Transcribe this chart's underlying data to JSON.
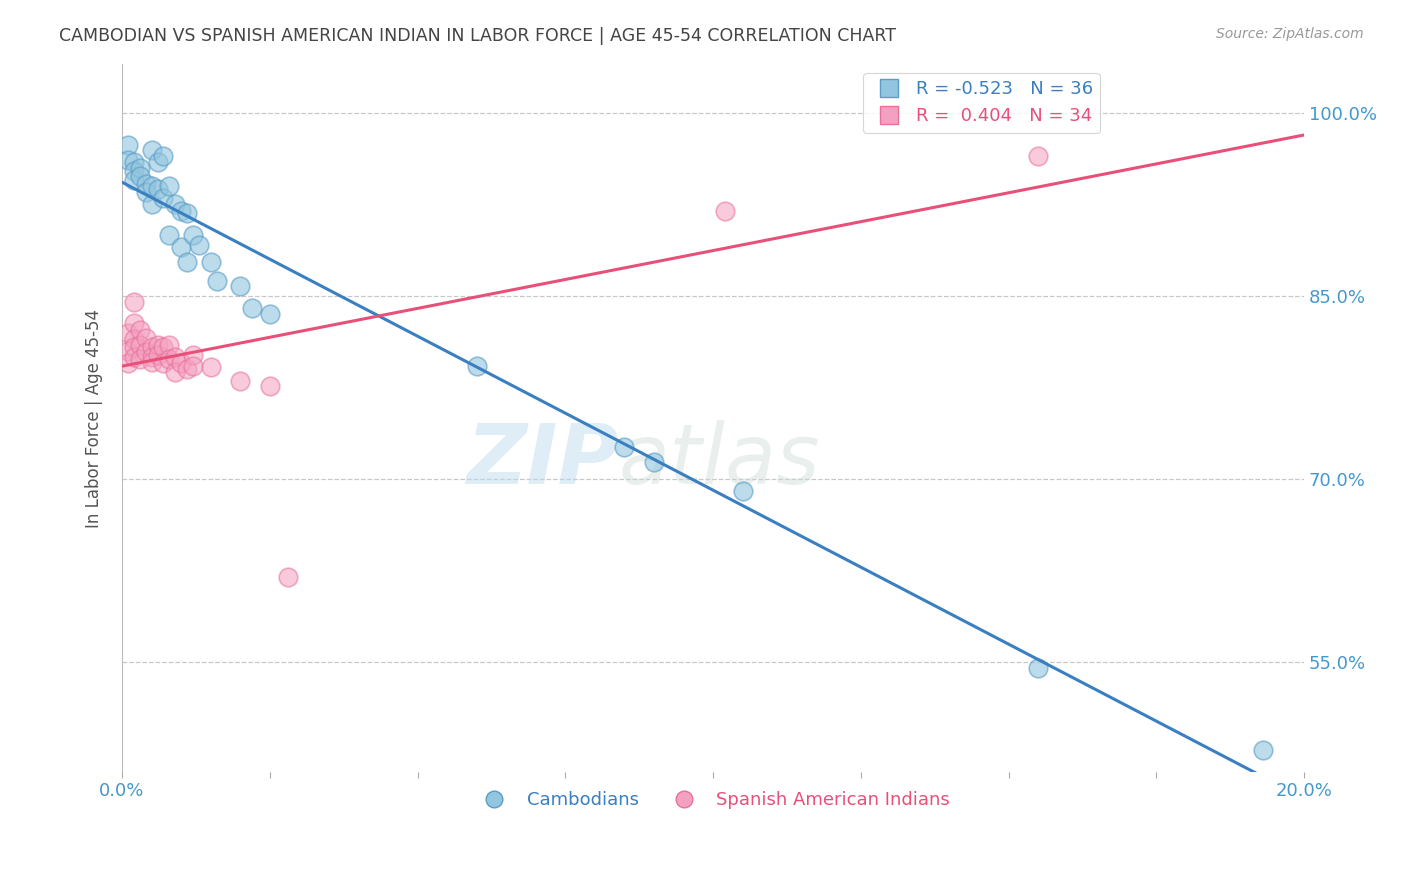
{
  "title": "CAMBODIAN VS SPANISH AMERICAN INDIAN IN LABOR FORCE | AGE 45-54 CORRELATION CHART",
  "source": "Source: ZipAtlas.com",
  "ylabel": "In Labor Force | Age 45-54",
  "xlabel": "",
  "watermark_zip": "ZIP",
  "watermark_atlas": "atlas",
  "xlim": [
    0.0,
    0.2
  ],
  "ylim": [
    0.46,
    1.04
  ],
  "yticks": [
    0.55,
    0.7,
    0.85,
    1.0
  ],
  "ytick_labels": [
    "55.0%",
    "70.0%",
    "85.0%",
    "100.0%"
  ],
  "xticks": [
    0.0,
    0.025,
    0.05,
    0.075,
    0.1,
    0.125,
    0.15,
    0.175,
    0.2
  ],
  "xtick_labels": [
    "0.0%",
    "",
    "",
    "",
    "",
    "",
    "",
    "",
    "20.0%"
  ],
  "blue_R": -0.523,
  "blue_N": 36,
  "pink_R": 0.404,
  "pink_N": 34,
  "blue_color": "#92c5de",
  "pink_color": "#f4a0c0",
  "blue_edge_color": "#5a9dc8",
  "pink_edge_color": "#e8709a",
  "blue_line_color": "#3a7fc1",
  "pink_line_color": "#e8507a",
  "blue_scatter": [
    [
      0.001,
      0.974
    ],
    [
      0.001,
      0.961
    ],
    [
      0.002,
      0.96
    ],
    [
      0.002,
      0.952
    ],
    [
      0.002,
      0.945
    ],
    [
      0.003,
      0.955
    ],
    [
      0.003,
      0.948
    ],
    [
      0.004,
      0.942
    ],
    [
      0.004,
      0.935
    ],
    [
      0.005,
      0.97
    ],
    [
      0.005,
      0.94
    ],
    [
      0.005,
      0.925
    ],
    [
      0.006,
      0.96
    ],
    [
      0.006,
      0.938
    ],
    [
      0.007,
      0.965
    ],
    [
      0.007,
      0.93
    ],
    [
      0.008,
      0.94
    ],
    [
      0.008,
      0.9
    ],
    [
      0.009,
      0.925
    ],
    [
      0.01,
      0.92
    ],
    [
      0.01,
      0.89
    ],
    [
      0.011,
      0.918
    ],
    [
      0.011,
      0.878
    ],
    [
      0.012,
      0.9
    ],
    [
      0.013,
      0.892
    ],
    [
      0.015,
      0.878
    ],
    [
      0.016,
      0.862
    ],
    [
      0.02,
      0.858
    ],
    [
      0.022,
      0.84
    ],
    [
      0.025,
      0.835
    ],
    [
      0.06,
      0.793
    ],
    [
      0.085,
      0.726
    ],
    [
      0.09,
      0.714
    ],
    [
      0.105,
      0.69
    ],
    [
      0.155,
      0.545
    ],
    [
      0.193,
      0.478
    ]
  ],
  "pink_scatter": [
    [
      0.001,
      0.82
    ],
    [
      0.001,
      0.805
    ],
    [
      0.001,
      0.795
    ],
    [
      0.002,
      0.845
    ],
    [
      0.002,
      0.828
    ],
    [
      0.002,
      0.815
    ],
    [
      0.002,
      0.808
    ],
    [
      0.002,
      0.8
    ],
    [
      0.003,
      0.822
    ],
    [
      0.003,
      0.81
    ],
    [
      0.003,
      0.798
    ],
    [
      0.004,
      0.816
    ],
    [
      0.004,
      0.804
    ],
    [
      0.005,
      0.808
    ],
    [
      0.005,
      0.8
    ],
    [
      0.005,
      0.796
    ],
    [
      0.006,
      0.81
    ],
    [
      0.006,
      0.802
    ],
    [
      0.007,
      0.808
    ],
    [
      0.007,
      0.795
    ],
    [
      0.008,
      0.81
    ],
    [
      0.008,
      0.798
    ],
    [
      0.009,
      0.8
    ],
    [
      0.009,
      0.788
    ],
    [
      0.01,
      0.795
    ],
    [
      0.011,
      0.79
    ],
    [
      0.012,
      0.802
    ],
    [
      0.012,
      0.793
    ],
    [
      0.015,
      0.792
    ],
    [
      0.02,
      0.78
    ],
    [
      0.025,
      0.776
    ],
    [
      0.028,
      0.62
    ],
    [
      0.102,
      0.92
    ],
    [
      0.155,
      0.965
    ]
  ],
  "legend_label_blue": "Cambodians",
  "legend_label_pink": "Spanish American Indians",
  "background_color": "#ffffff",
  "grid_color": "#bbbbbb"
}
